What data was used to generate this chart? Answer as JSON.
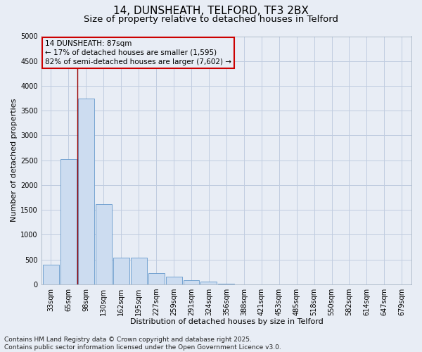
{
  "title_line1": "14, DUNSHEATH, TELFORD, TF3 2BX",
  "title_line2": "Size of property relative to detached houses in Telford",
  "xlabel": "Distribution of detached houses by size in Telford",
  "ylabel": "Number of detached properties",
  "categories": [
    "33sqm",
    "65sqm",
    "98sqm",
    "130sqm",
    "162sqm",
    "195sqm",
    "227sqm",
    "259sqm",
    "291sqm",
    "324sqm",
    "356sqm",
    "388sqm",
    "421sqm",
    "453sqm",
    "485sqm",
    "518sqm",
    "550sqm",
    "582sqm",
    "614sqm",
    "647sqm",
    "679sqm"
  ],
  "values": [
    390,
    2520,
    3750,
    1620,
    540,
    540,
    220,
    150,
    80,
    50,
    20,
    0,
    0,
    0,
    0,
    0,
    0,
    0,
    0,
    0,
    0
  ],
  "bar_color": "#ccdcf0",
  "bar_edge_color": "#6699cc",
  "grid_color": "#c0cce0",
  "background_color": "#e8edf5",
  "vline_color": "#990000",
  "vline_x": 1.5,
  "annotation_text": "14 DUNSHEATH: 87sqm\n← 17% of detached houses are smaller (1,595)\n82% of semi-detached houses are larger (7,602) →",
  "annotation_box_color": "#cc0000",
  "annotation_bg": "#e8edf5",
  "ylim": [
    0,
    5000
  ],
  "yticks": [
    0,
    500,
    1000,
    1500,
    2000,
    2500,
    3000,
    3500,
    4000,
    4500,
    5000
  ],
  "footer_line1": "Contains HM Land Registry data © Crown copyright and database right 2025.",
  "footer_line2": "Contains public sector information licensed under the Open Government Licence v3.0.",
  "title_fontsize": 11,
  "subtitle_fontsize": 9.5,
  "axis_label_fontsize": 8,
  "tick_fontsize": 7,
  "annotation_fontsize": 7.5,
  "footer_fontsize": 6.5
}
